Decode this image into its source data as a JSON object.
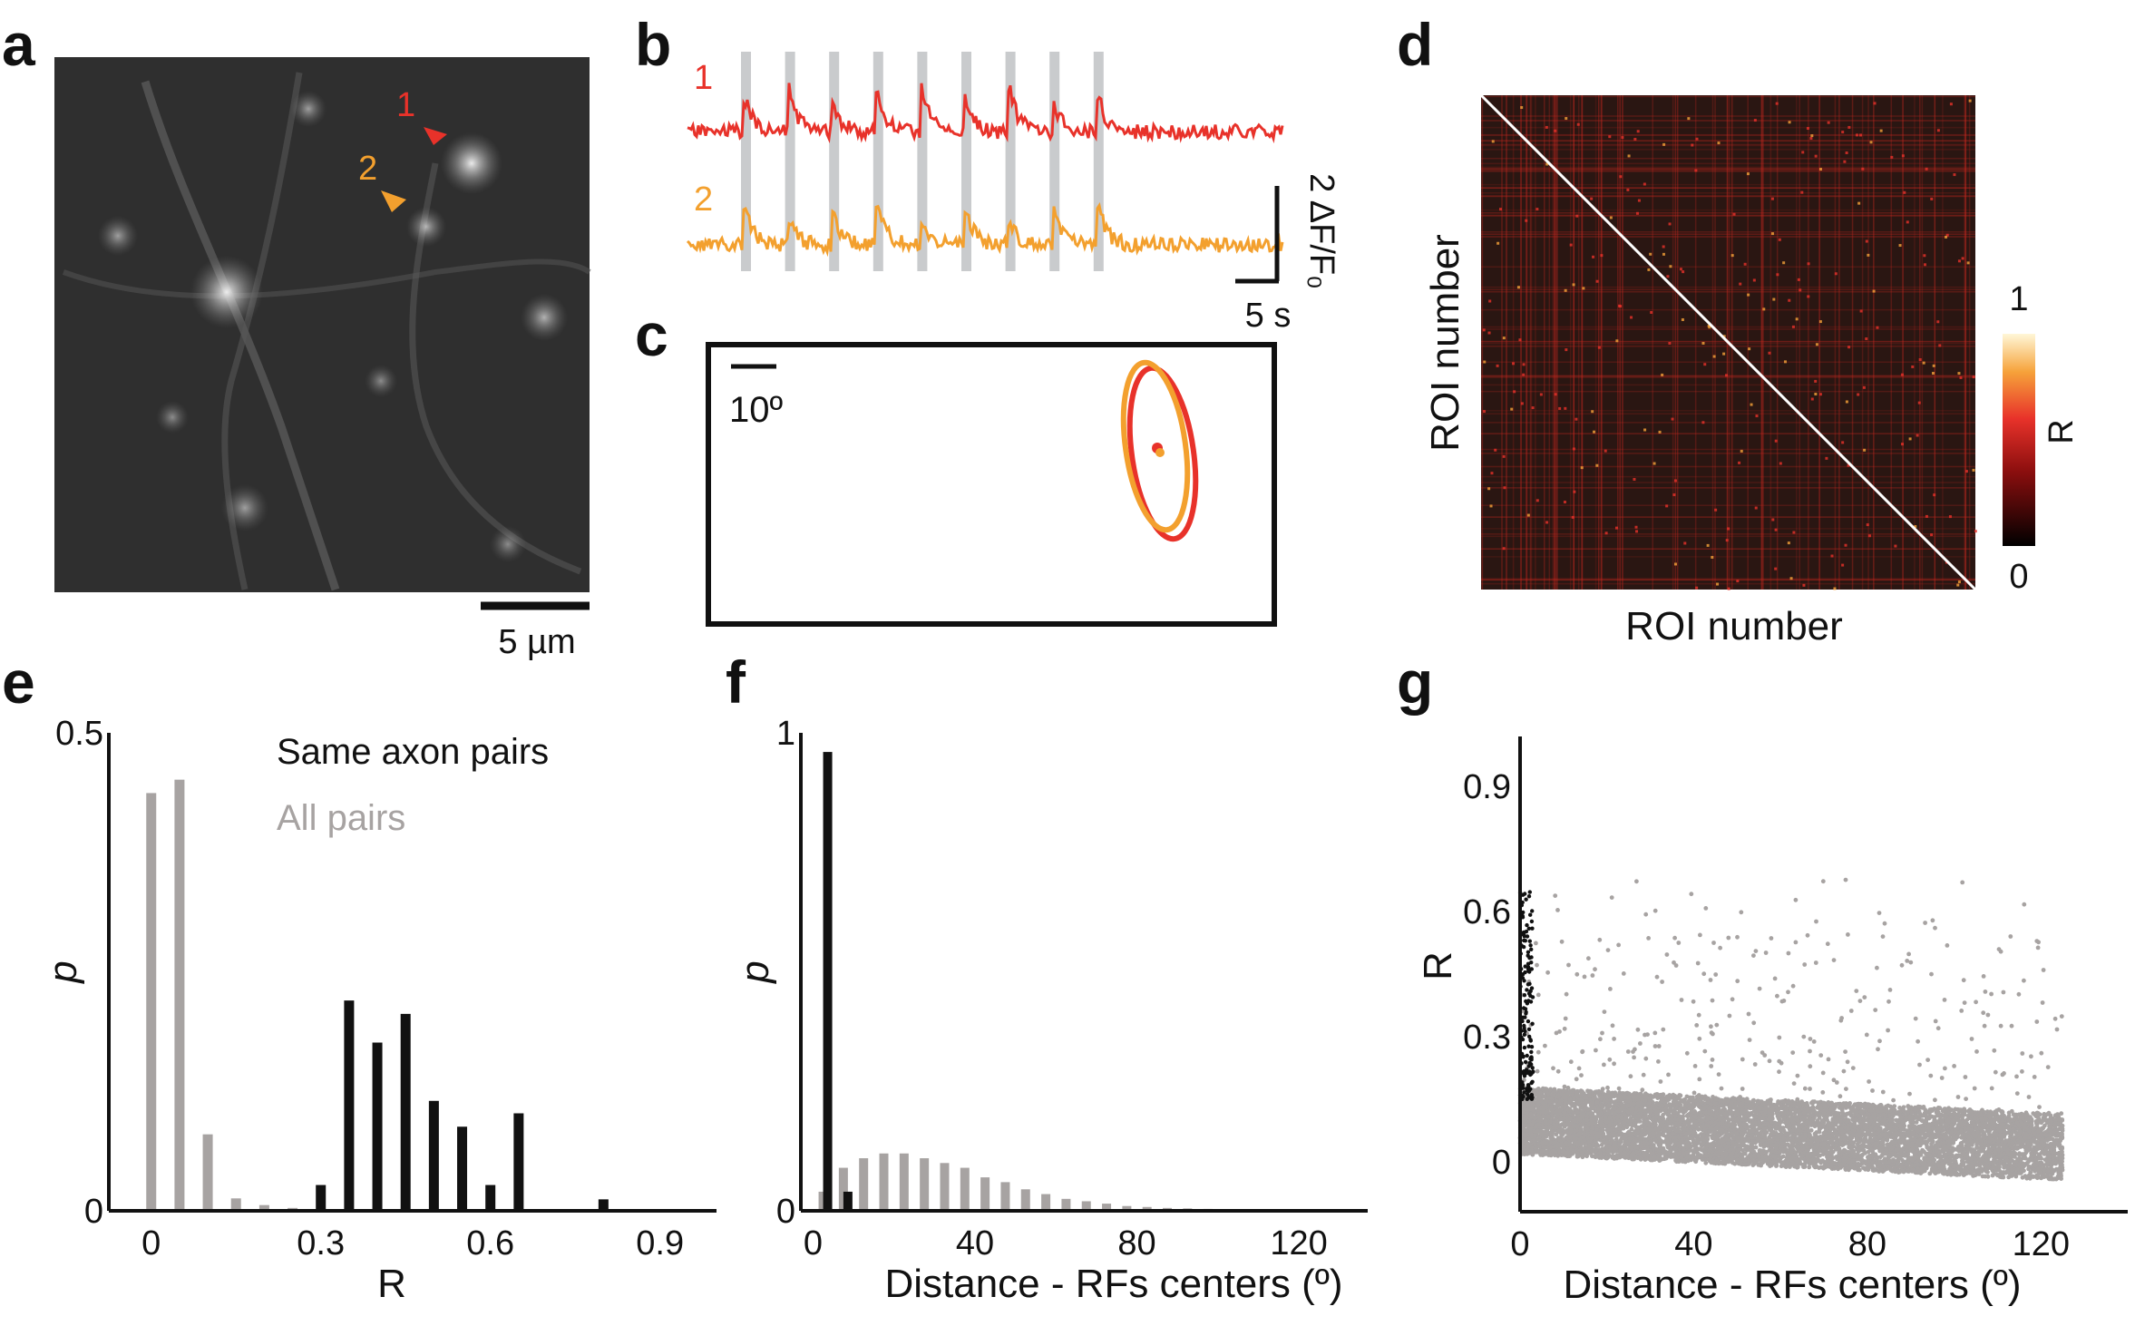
{
  "panel_labels": {
    "a": "a",
    "b": "b",
    "c": "c",
    "d": "d",
    "e": "e",
    "f": "f",
    "g": "g"
  },
  "colors": {
    "trace1": "#e8322a",
    "trace2": "#f3a02e",
    "black": "#111111",
    "gray": "#a7a3a2",
    "stim": "#c9cbcd",
    "matrix_bg": "#2a1612"
  },
  "panel_a": {
    "roi1_label": "1",
    "roi2_label": "2",
    "scalebar_label": "5 µm"
  },
  "panel_b": {
    "trace1_label": "1",
    "trace2_label": "2",
    "time_scale_label": "5 s",
    "amp_scale_label": "2 ΔF/F₀",
    "stim_count": 9
  },
  "panel_c": {
    "scale_label": "10º"
  },
  "panel_d": {
    "xlabel": "ROI number",
    "ylabel": "ROI number",
    "colorbar_label": "R",
    "colorbar_max": "1",
    "colorbar_min": "0"
  },
  "chart_data": [
    {
      "id": "e",
      "type": "bar",
      "xlabel": "R",
      "ylabel": "p",
      "xlim": [
        -0.075,
        1.0
      ],
      "ylim": [
        0,
        0.5
      ],
      "xticks": [
        "0",
        "0.3",
        "0.6",
        "0.9"
      ],
      "xtick_values": [
        0,
        0.3,
        0.6,
        0.9
      ],
      "yticks": [
        "0",
        "0.5"
      ],
      "ytick_values": [
        0,
        0.5
      ],
      "legend": [
        "Same axon pairs",
        "All pairs"
      ],
      "bin_centers": [
        0,
        0.05,
        0.1,
        0.15,
        0.2,
        0.25,
        0.3,
        0.35,
        0.4,
        0.45,
        0.5,
        0.55,
        0.6,
        0.65,
        0.7,
        0.75,
        0.8,
        0.85,
        0.9,
        0.95
      ],
      "series": [
        {
          "name": "All pairs",
          "values": [
            0.437,
            0.451,
            0.08,
            0.013,
            0.006,
            0.003,
            0.002,
            0.001,
            0.001,
            0.001,
            0.001,
            0.001,
            0.001,
            0.001,
            0.001,
            0.001,
            0.001,
            0.001,
            0.001,
            0.001
          ]
        },
        {
          "name": "Same axon pairs",
          "values": [
            0,
            0,
            0,
            0,
            0,
            0,
            0.027,
            0.22,
            0.176,
            0.206,
            0.115,
            0.088,
            0.027,
            0.102,
            0,
            0,
            0.012,
            0,
            0,
            0
          ]
        }
      ]
    },
    {
      "id": "f",
      "type": "bar",
      "xlabel": "Distance - RFs centers (º)",
      "ylabel": "p",
      "xlim": [
        -3,
        137
      ],
      "ylim": [
        0,
        1
      ],
      "xticks": [
        "0",
        "40",
        "80",
        "120"
      ],
      "xtick_values": [
        0,
        40,
        80,
        120
      ],
      "yticks": [
        "0",
        "1"
      ],
      "ytick_values": [
        0,
        1
      ],
      "bin_centers": [
        2.5,
        7.5,
        12.5,
        17.5,
        22.5,
        27.5,
        32.5,
        37.5,
        42.5,
        47.5,
        52.5,
        57.5,
        62.5,
        67.5,
        72.5,
        77.5,
        82.5,
        87.5,
        92.5,
        97.5,
        102.5,
        107.5,
        112.5,
        117.5,
        122.5,
        127.5,
        132.5
      ],
      "series": [
        {
          "name": "All pairs",
          "values": [
            0.04,
            0.09,
            0.11,
            0.12,
            0.12,
            0.11,
            0.1,
            0.09,
            0.07,
            0.06,
            0.045,
            0.035,
            0.025,
            0.02,
            0.015,
            0.01,
            0.008,
            0.006,
            0.005,
            0.004,
            0.003,
            0.003,
            0.002,
            0.002,
            0.002,
            0.001,
            0.001
          ]
        },
        {
          "name": "Same axon pairs",
          "values": [
            0.96,
            0.04,
            0,
            0,
            0,
            0,
            0,
            0,
            0,
            0,
            0,
            0,
            0,
            0,
            0,
            0,
            0,
            0,
            0,
            0,
            0,
            0,
            0,
            0,
            0,
            0,
            0
          ]
        }
      ]
    },
    {
      "id": "g",
      "type": "scatter",
      "xlabel": "Distance - RFs centers (º)",
      "ylabel": "R",
      "xlim": [
        0,
        140
      ],
      "ylim": [
        -0.12,
        1.02
      ],
      "xticks": [
        "0",
        "40",
        "80",
        "120"
      ],
      "xtick_values": [
        0,
        40,
        80,
        120
      ],
      "yticks": [
        "0",
        "0.3",
        "0.6",
        "0.9"
      ],
      "ytick_values": [
        0,
        0.3,
        0.6,
        0.9
      ],
      "series": [
        {
          "name": "All pairs",
          "description": "dense cloud",
          "x_range": [
            0,
            125
          ],
          "r_mean_at_0": 0.09,
          "r_mean_at_120": 0.03,
          "n": 9000
        },
        {
          "name": "Same axon pairs",
          "description": "near-zero distances",
          "x_range": [
            0,
            3
          ],
          "r_range": [
            0.15,
            0.65
          ],
          "n": 150
        }
      ]
    }
  ]
}
